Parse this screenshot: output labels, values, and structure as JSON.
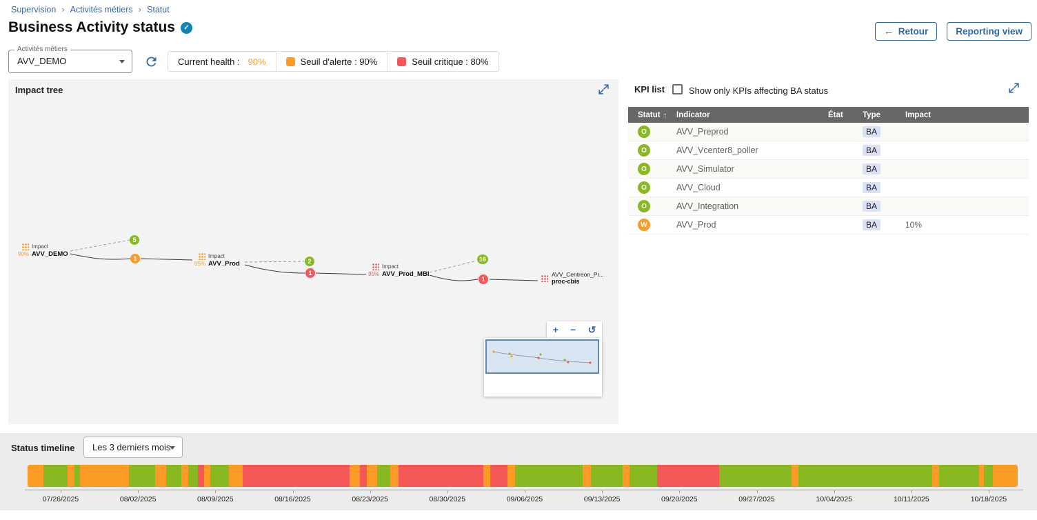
{
  "colors": {
    "ok": "#88B922",
    "warning": "#FD9B27",
    "critical": "#F55757",
    "primary_blue": "#2E68AA"
  },
  "icons": {
    "back_arrow": "←",
    "check": "✓",
    "sort_asc": "↑",
    "separator": "›"
  },
  "breadcrumb": {
    "items": [
      "Supervision",
      "Activités métiers",
      "Statut"
    ],
    "separator": "›"
  },
  "header": {
    "title": "Business Activity status",
    "back_button": "Retour",
    "reporting_button": "Reporting view"
  },
  "toolbar": {
    "ba_select_label": "Activités métiers",
    "ba_select_value": "AVV_DEMO",
    "current_health_label": "Current health :",
    "current_health_value": "90%",
    "warning_threshold_label": "Seuil d'alerte : 90%",
    "critical_threshold_label": "Seuil critique : 80%"
  },
  "impact_tree": {
    "title": "Impact tree",
    "nodes": [
      {
        "impact_label": "Impact",
        "percent": "90%",
        "name": "AVV_DEMO"
      },
      {
        "impact_label": "Impact",
        "percent": "95%",
        "name": "AVV_Prod"
      },
      {
        "impact_label": "Impact",
        "percent": "95%",
        "name": "AVV_Prod_MBI"
      },
      {
        "name_line1": "AVV_Centreon_Pr...",
        "name_line2": "proc-cbis"
      }
    ],
    "badges": [
      {
        "value": "5",
        "status": "ok"
      },
      {
        "value": "1",
        "status": "warning"
      },
      {
        "value": "2",
        "status": "ok"
      },
      {
        "value": "1",
        "status": "critical"
      },
      {
        "value": "16",
        "status": "ok"
      },
      {
        "value": "1",
        "status": "critical"
      }
    ],
    "zoom_controls": {
      "zoom_in": "+",
      "zoom_out": "−",
      "reset": "↺"
    }
  },
  "kpi_list": {
    "title": "KPI list",
    "filter_label": "Show only KPIs affecting BA status",
    "columns": {
      "status": "Statut",
      "indicator": "Indicator",
      "state": "État",
      "type": "Type",
      "impact": "Impact"
    },
    "rows": [
      {
        "status": "O",
        "status_color": "ok",
        "indicator": "AVV_Preprod",
        "state": "",
        "type": "BA",
        "impact": ""
      },
      {
        "status": "O",
        "status_color": "ok",
        "indicator": "AVV_Vcenter8_poller",
        "state": "",
        "type": "BA",
        "impact": ""
      },
      {
        "status": "O",
        "status_color": "ok",
        "indicator": "AVV_Simulator",
        "state": "",
        "type": "BA",
        "impact": ""
      },
      {
        "status": "O",
        "status_color": "ok",
        "indicator": "AVV_Cloud",
        "state": "",
        "type": "BA",
        "impact": ""
      },
      {
        "status": "O",
        "status_color": "ok",
        "indicator": "AVV_Integration",
        "state": "",
        "type": "BA",
        "impact": ""
      },
      {
        "status": "W",
        "status_color": "warning",
        "indicator": "AVV_Prod",
        "state": "",
        "type": "BA",
        "impact": "10%"
      }
    ]
  },
  "timeline": {
    "title": "Status timeline",
    "period_value": "Les 3 derniers mois",
    "dates": [
      "07/26/2025",
      "08/02/2025",
      "08/09/2025",
      "08/16/2025",
      "08/23/2025",
      "08/30/2025",
      "09/06/2025",
      "09/13/2025",
      "09/20/2025",
      "09/27/2025",
      "10/04/2025",
      "10/11/2025",
      "10/18/2025"
    ],
    "segments": [
      {
        "s": "warning",
        "w": 1.6
      },
      {
        "s": "ok",
        "w": 2.4
      },
      {
        "s": "warning",
        "w": 0.7
      },
      {
        "s": "ok",
        "w": 0.6
      },
      {
        "s": "warning",
        "w": 4.9
      },
      {
        "s": "ok",
        "w": 2.7
      },
      {
        "s": "warning",
        "w": 1.1
      },
      {
        "s": "ok",
        "w": 1.5
      },
      {
        "s": "warning",
        "w": 0.7
      },
      {
        "s": "ok",
        "w": 1.0
      },
      {
        "s": "critical",
        "w": 0.6
      },
      {
        "s": "warning",
        "w": 0.6
      },
      {
        "s": "ok",
        "w": 1.9
      },
      {
        "s": "warning",
        "w": 1.4
      },
      {
        "s": "critical",
        "w": 10.8
      },
      {
        "s": "warning",
        "w": 1.0
      },
      {
        "s": "critical",
        "w": 0.7
      },
      {
        "s": "warning",
        "w": 1.1
      },
      {
        "s": "ok",
        "w": 1.3
      },
      {
        "s": "warning",
        "w": 0.8
      },
      {
        "s": "critical",
        "w": 8.6
      },
      {
        "s": "warning",
        "w": 0.7
      },
      {
        "s": "critical",
        "w": 1.7
      },
      {
        "s": "warning",
        "w": 0.8
      },
      {
        "s": "ok",
        "w": 6.8
      },
      {
        "s": "warning",
        "w": 0.8
      },
      {
        "s": "ok",
        "w": 3.2
      },
      {
        "s": "warning",
        "w": 0.7
      },
      {
        "s": "ok",
        "w": 2.8
      },
      {
        "s": "critical",
        "w": 6.3
      },
      {
        "s": "ok",
        "w": 7.3
      },
      {
        "s": "warning",
        "w": 0.7
      },
      {
        "s": "ok",
        "w": 13.5
      },
      {
        "s": "warning",
        "w": 0.7
      },
      {
        "s": "ok",
        "w": 4.0
      },
      {
        "s": "warning",
        "w": 0.5
      },
      {
        "s": "ok",
        "w": 0.9
      },
      {
        "s": "warning",
        "w": 2.5
      }
    ]
  }
}
